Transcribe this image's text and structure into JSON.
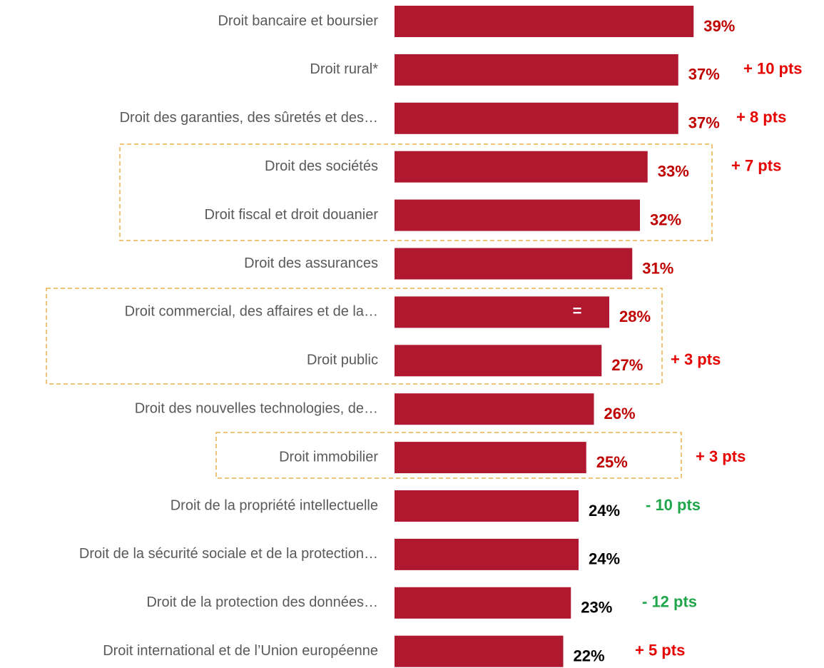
{
  "chart_data": {
    "type": "bar",
    "orientation": "horizontal",
    "categories": [
      "Droit bancaire et boursier",
      "Droit rural*",
      "Droit des garanties, des sûretés et des…",
      "Droit des sociétés",
      "Droit fiscal et droit douanier",
      "Droit des assurances",
      "Droit commercial, des affaires et de la…",
      "Droit public",
      "Droit des nouvelles technologies, de…",
      "Droit immobilier",
      "Droit de la propriété intellectuelle",
      "Droit de la sécurité sociale et de la protection…",
      "Droit de la protection des données…",
      "Droit international et de l’Union européenne"
    ],
    "values": [
      39,
      37,
      37,
      33,
      32,
      31,
      28,
      27,
      26,
      25,
      24,
      24,
      23,
      22
    ],
    "value_labels": [
      "39%",
      "37%",
      "37%",
      "33%",
      "32%",
      "31%",
      "28%",
      "27%",
      "26%",
      "25%",
      "24%",
      "24%",
      "23%",
      "22%"
    ],
    "value_label_colors": [
      "#c00000",
      "#c00000",
      "#c00000",
      "#c00000",
      "#c00000",
      "#c00000",
      "#c00000",
      "#c00000",
      "#c00000",
      "#c00000",
      "#000000",
      "#000000",
      "#000000",
      "#000000"
    ],
    "changes": [
      null,
      "+ 10 pts",
      "+ 8 pts",
      "+ 7 pts",
      null,
      null,
      "=",
      "+ 3 pts",
      null,
      "+ 3 pts",
      "- 10 pts",
      null,
      "- 12 pts",
      "+ 5 pts"
    ],
    "change_colors": [
      null,
      "#e60000",
      "#e60000",
      "#e60000",
      null,
      null,
      "#ffffff",
      "#e60000",
      null,
      "#e60000",
      "#1fa64a",
      null,
      "#1fa64a",
      "#e60000"
    ],
    "color": "#b0182f"
  }
}
